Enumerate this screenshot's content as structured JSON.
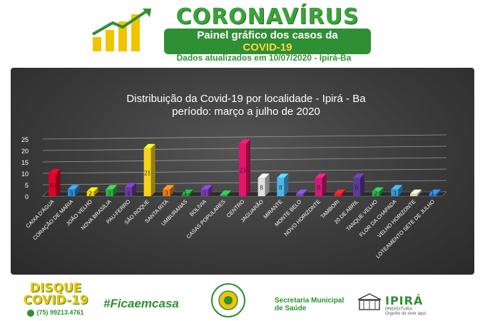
{
  "header": {
    "brand": "CORONAVÍRUS",
    "subtitle_line1": "Painel gráfico dos casos da",
    "subtitle_line2": "COVID-19",
    "updated": "Dados atualizados em 10/07/2020 - Ipirá-Ba"
  },
  "footer": {
    "disque_line1": "DISQUE",
    "disque_line2": "COVID-19",
    "phone": "(75) 99213.4761",
    "hashtag": "#Ficaemcasa",
    "secretaria_line1": "Secretaria Municipal",
    "secretaria_line2": "de Saúde",
    "ipira": "IPIRÁ",
    "ipira_sub1": "PREFEITURA",
    "ipira_sub2": "Orgulho de viver aqui"
  },
  "chart_data": {
    "type": "bar",
    "title_line1": "Distribuição da Covid-19 por localidade - Ipirá - Ba",
    "title_line2": "período: março a julho de 2020",
    "categories": [
      "CAIXA D'ÁGUA",
      "CORAÇÃO DE MARIA",
      "JOÃO VELHO",
      "NOVA BRASÍLIA",
      "PAU-FERRO",
      "SÃO ROQUE",
      "SANTA RITA",
      "UMBURANAS",
      "BOLÍVIA",
      "CASAS POPULARES",
      "CENTRO",
      "JAGUARÃO",
      "MIRANTE",
      "MONTE BELO",
      "NOVO HORIZONTE",
      "TAMBORI",
      "20 DE ABRIL",
      "TANQUE VELHO",
      "FLOR DA CHAPADA",
      "VELHO HORIZONTE",
      "LOTEAMENTO SETE DE JULHO"
    ],
    "values": [
      10,
      3,
      2,
      3,
      4,
      21,
      3,
      1,
      3,
      0,
      23,
      8,
      8,
      1,
      8,
      1,
      8,
      2,
      3,
      1,
      1
    ],
    "labels": [
      "10",
      "3",
      "2",
      "3",
      "4",
      "21",
      "3",
      "1",
      "3",
      "",
      "23",
      "8",
      "8",
      "",
      "8",
      "",
      "8",
      "2",
      "3",
      "",
      "1"
    ],
    "colors": [
      "#e4002b",
      "#2e8bd8",
      "#f2d400",
      "#33b14a",
      "#6a3aa8",
      "#f7d21c",
      "#f07a1a",
      "#1e9a3a",
      "#7a3ab8",
      "#27a84a",
      "#e6136b",
      "#e0e0e0",
      "#4db6e8",
      "#6a4ab8",
      "#d01a7a",
      "#e4202a",
      "#5a3a98",
      "#2eaa4a",
      "#3a9ad8",
      "#f0d0b8",
      "#2e7ad0"
    ],
    "ylim": [
      0,
      25
    ],
    "yticks": [
      0,
      5,
      10,
      15,
      20,
      25
    ],
    "grid": true
  }
}
